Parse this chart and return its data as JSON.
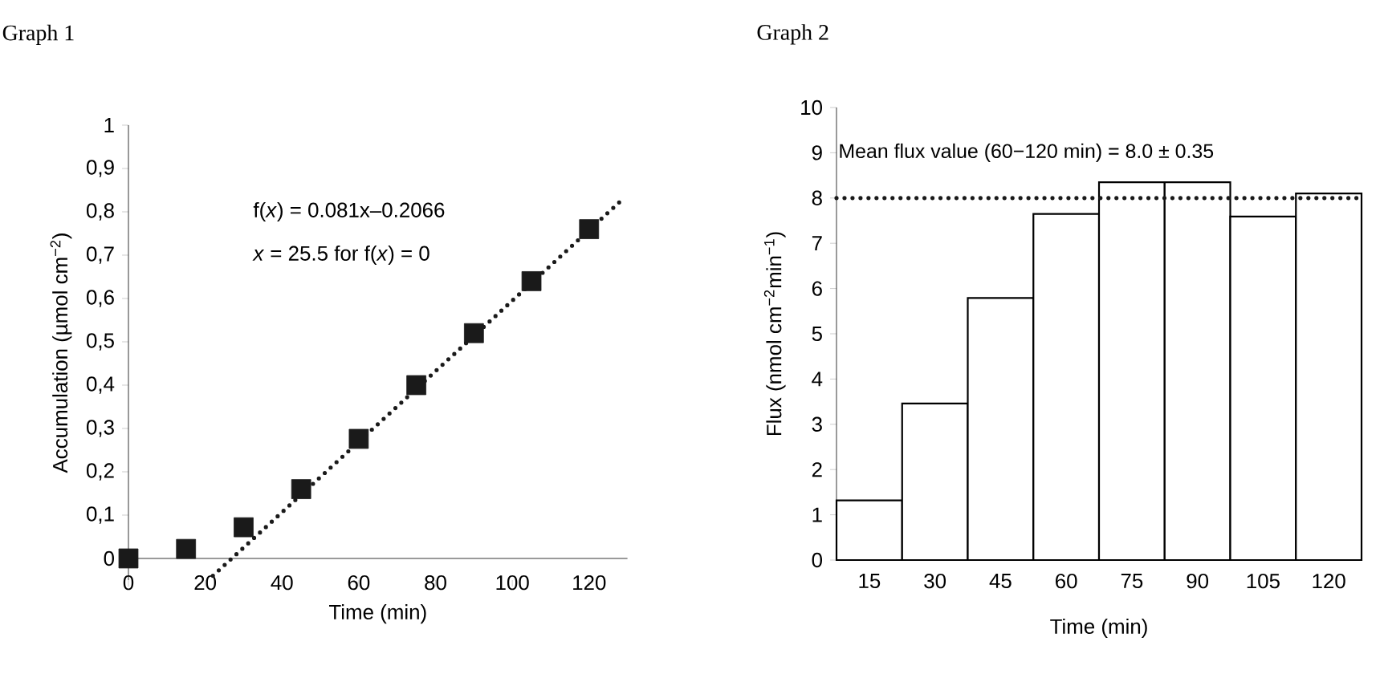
{
  "chart_data": [
    {
      "type": "scatter",
      "title": "Graph 1",
      "xlabel": "Time (min)",
      "ylabel": "Accumulation (µmol cm$^{−2}$)",
      "x": [
        0,
        15,
        30,
        45,
        60,
        75,
        90,
        105,
        120
      ],
      "series": [
        {
          "type": "scatter",
          "color": "#1a1a1a",
          "marker": "square",
          "values": [
            0,
            0.022,
            0.072,
            0.16,
            0.276,
            0.4,
            0.52,
            0.64,
            0.76
          ]
        },
        {
          "type": "line",
          "color": "#1a1a1a",
          "line_style": "dotted",
          "x": [
            22,
            128
          ],
          "values": [
            -0.04,
            0.823
          ]
        }
      ],
      "xlim": [
        0,
        130
      ],
      "ylim": [
        -0.05,
        1
      ],
      "xticks": [
        0,
        20,
        40,
        60,
        80,
        100,
        120
      ],
      "yticks": [
        0,
        {
          "value": 0.1,
          "label": "0,1"
        },
        {
          "value": 0.2,
          "label": "0,2"
        },
        {
          "value": 0.3,
          "label": "0,3"
        },
        {
          "value": 0.4,
          "label": "0,4"
        },
        {
          "value": 0.5,
          "label": "0,5"
        },
        {
          "value": 0.6,
          "label": "0,6"
        },
        {
          "value": 0.7,
          "label": "0,7"
        },
        {
          "value": 0.8,
          "label": "0,8"
        },
        {
          "value": 0.9,
          "label": "0,9"
        },
        1
      ],
      "annotations": [
        "f(*x*) = 0.081x–0.2066",
        "*x* = 25.5 for f(*x*) = 0"
      ]
    },
    {
      "type": "bar",
      "title": "Graph 2",
      "xlabel": "Time (min)",
      "ylabel": "Flux (nmol cm$^{−2}$min$^{−1}$)",
      "categories": [
        "15",
        "30",
        "45",
        "60",
        "75",
        "90",
        "105",
        "120"
      ],
      "values": [
        1.32,
        3.46,
        5.79,
        7.65,
        8.35,
        8.35,
        7.59,
        8.1
      ],
      "color": "#ffffff",
      "ylim": [
        0,
        10
      ],
      "yticks": [
        0,
        1,
        2,
        3,
        4,
        5,
        6,
        7,
        8,
        9,
        10
      ],
      "ref_lines": [
        {
          "axis": "y",
          "value": 8.0,
          "label": "Mean flux value (60−120 min) = 8.0 ± 0.35",
          "line_style": "dotted",
          "color": "#1a1a1a"
        }
      ]
    }
  ]
}
